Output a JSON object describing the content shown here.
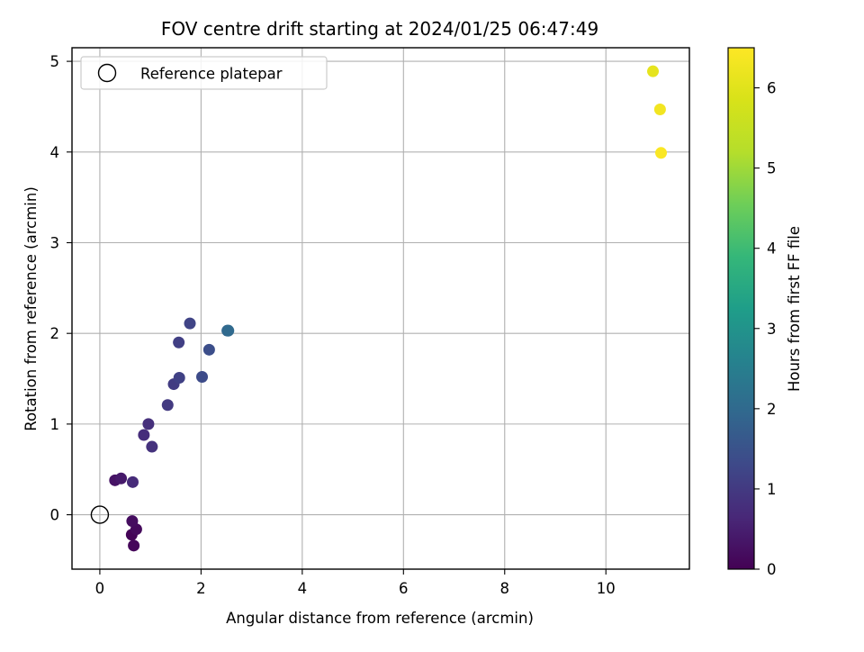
{
  "chart_data": {
    "type": "scatter",
    "title": "FOV centre drift starting at 2024/01/25 06:47:49",
    "xlabel": "Angular distance from reference (arcmin)",
    "ylabel": "Rotation from reference (arcmin)",
    "xlim": [
      -0.55,
      11.65
    ],
    "ylim": [
      -0.6,
      5.15
    ],
    "xticks": [
      0,
      2,
      4,
      6,
      8,
      10
    ],
    "yticks": [
      0,
      1,
      2,
      3,
      4,
      5
    ],
    "grid": true,
    "legend": {
      "placement": "upper-left",
      "entries": [
        {
          "label": "Reference platepar",
          "marker": "open-circle",
          "color": "#000000"
        }
      ]
    },
    "reference_point": {
      "x": 0,
      "y": 0
    },
    "colorbar": {
      "label": "Hours from first FF file",
      "range": [
        0,
        6.5
      ],
      "ticks": [
        0,
        1,
        2,
        3,
        4,
        5,
        6
      ],
      "colormap": "viridis"
    },
    "series": [
      {
        "marker": "filled-circle",
        "points": [
          {
            "x": 0.63,
            "y": -0.22,
            "hours": 0.05
          },
          {
            "x": 0.67,
            "y": -0.34,
            "hours": 0.1
          },
          {
            "x": 0.72,
            "y": -0.16,
            "hours": 0.15
          },
          {
            "x": 0.64,
            "y": -0.07,
            "hours": 0.2
          },
          {
            "x": 0.3,
            "y": 0.38,
            "hours": 0.3
          },
          {
            "x": 0.42,
            "y": 0.4,
            "hours": 0.4
          },
          {
            "x": 0.65,
            "y": 0.36,
            "hours": 0.7
          },
          {
            "x": 0.87,
            "y": 0.88,
            "hours": 0.75
          },
          {
            "x": 0.96,
            "y": 1.0,
            "hours": 0.8
          },
          {
            "x": 1.03,
            "y": 0.75,
            "hours": 0.85
          },
          {
            "x": 1.34,
            "y": 1.21,
            "hours": 1.0
          },
          {
            "x": 1.46,
            "y": 1.44,
            "hours": 1.05
          },
          {
            "x": 1.56,
            "y": 1.9,
            "hours": 1.1
          },
          {
            "x": 1.57,
            "y": 1.51,
            "hours": 1.15
          },
          {
            "x": 1.78,
            "y": 2.11,
            "hours": 1.2
          },
          {
            "x": 2.02,
            "y": 1.52,
            "hours": 1.35
          },
          {
            "x": 2.16,
            "y": 1.82,
            "hours": 1.4
          },
          {
            "x": 2.52,
            "y": 2.03,
            "hours": 1.9
          },
          {
            "x": 2.54,
            "y": 2.03,
            "hours": 2.0
          },
          {
            "x": 10.93,
            "y": 4.89,
            "hours": 6.1
          },
          {
            "x": 11.07,
            "y": 4.47,
            "hours": 6.3
          },
          {
            "x": 11.09,
            "y": 3.99,
            "hours": 6.45
          }
        ]
      }
    ]
  }
}
